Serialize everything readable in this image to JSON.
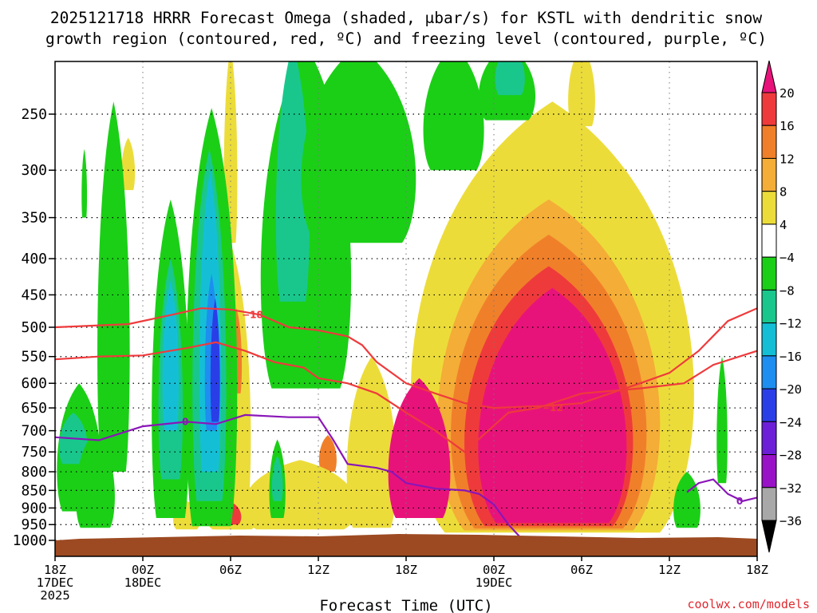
{
  "chart_data": {
    "type": "heatmap",
    "title_line1": "2025121718 HRRR Forecast Omega (shaded, μbar/s) for KSTL with dendritic snow",
    "title_line2": "growth region (contoured, red, ºC) and freezing level (contoured, purple, ºC)",
    "xlabel": "Forecast Time (UTC)",
    "credit": "coolwx.com/models",
    "y_axis": {
      "type": "pressure",
      "unit": "hPa",
      "reversed": true,
      "ticks": [
        250,
        300,
        350,
        400,
        450,
        500,
        550,
        600,
        650,
        700,
        750,
        800,
        850,
        900,
        950,
        1000
      ],
      "range": [
        1000,
        200
      ]
    },
    "x_axis": {
      "range_hours": [
        0,
        48
      ],
      "ticks": [
        {
          "hour": 0,
          "lines": [
            "18Z",
            "17DEC",
            "2025"
          ]
        },
        {
          "hour": 6,
          "lines": [
            "00Z",
            "18DEC"
          ]
        },
        {
          "hour": 12,
          "lines": [
            "06Z"
          ]
        },
        {
          "hour": 18,
          "lines": [
            "12Z"
          ]
        },
        {
          "hour": 24,
          "lines": [
            "18Z"
          ]
        },
        {
          "hour": 30,
          "lines": [
            "00Z",
            "19DEC"
          ]
        },
        {
          "hour": 36,
          "lines": [
            "06Z"
          ]
        },
        {
          "hour": 42,
          "lines": [
            "12Z"
          ]
        },
        {
          "hour": 48,
          "lines": [
            "18Z"
          ]
        }
      ]
    },
    "colorbar": {
      "labels": [
        "20",
        "16",
        "12",
        "8",
        "4",
        "−4",
        "−8",
        "−12",
        "−16",
        "−20",
        "−24",
        "−28",
        "−32",
        "−36"
      ],
      "colors": [
        "#e8137a",
        "#ef3a3c",
        "#f07f2a",
        "#f4ad37",
        "#ecdc3a",
        "#ffffff",
        "#1bcf17",
        "#19c78d",
        "#14bfd6",
        "#1e8ef0",
        "#2a3ee8",
        "#6d1fd8",
        "#9a12c8",
        "#a8a8a8",
        "#000000"
      ]
    },
    "shaded_areas": [
      {
        "level": "4",
        "t0": 23.5,
        "t1": 44.5,
        "p_top": 240,
        "p_bot": 975
      },
      {
        "level": "8",
        "t0": 25.5,
        "t1": 42.0,
        "p_top": 330,
        "p_bot": 968
      },
      {
        "level": "12",
        "t0": 26.5,
        "t1": 41.0,
        "p_top": 370,
        "p_bot": 962
      },
      {
        "level": "16",
        "t0": 27.5,
        "t1": 40.0,
        "p_top": 410,
        "p_bot": 955
      },
      {
        "level": "20",
        "t0": 28.5,
        "t1": 39.5,
        "p_top": 440,
        "p_bot": 945
      },
      {
        "level": "4",
        "t0": 19.8,
        "t1": 23.5,
        "p_top": 550,
        "p_bot": 960
      },
      {
        "level": "20",
        "t0": 22.6,
        "t1": 27.2,
        "p_top": 590,
        "p_bot": 930
      },
      {
        "level": "4",
        "t0": 10.5,
        "t1": 13.5,
        "p_top": 380,
        "p_bot": 965
      },
      {
        "level": "12",
        "t0": 18.0,
        "t1": 19.3,
        "p_top": 710,
        "p_bot": 800
      },
      {
        "level": "12",
        "t0": 12.0,
        "t1": 12.8,
        "p_top": 470,
        "p_bot": 620
      },
      {
        "level": "4",
        "t0": 12.5,
        "t1": 21.0,
        "p_top": 770,
        "p_bot": 965
      },
      {
        "level": "20",
        "t0": 14.8,
        "t1": 15.6,
        "p_top": 830,
        "p_bot": 930
      },
      {
        "level": "4",
        "t0": 8.0,
        "t1": 10.0,
        "p_top": 880,
        "p_bot": 965
      },
      {
        "level": "4",
        "t0": 10.2,
        "t1": 14.0,
        "p_top": 850,
        "p_bot": 965
      },
      {
        "level": "16",
        "t0": 11.0,
        "t1": 12.8,
        "p_top": 880,
        "p_bot": 950
      },
      {
        "level": "4",
        "t0": 7.5,
        "t1": 8.3,
        "p_top": 600,
        "p_bot": 870
      },
      {
        "level": "4",
        "t0": 9.5,
        "t1": 10.2,
        "p_top": 320,
        "p_bot": 400
      },
      {
        "level": "4",
        "t0": 11.5,
        "t1": 12.5,
        "p_top": 200,
        "p_bot": 380
      },
      {
        "level": "4",
        "t0": 18.2,
        "t1": 20.2,
        "p_top": 300,
        "p_bot": 450
      },
      {
        "level": "4",
        "t0": 35.0,
        "t1": 37.0,
        "p_top": 200,
        "p_bot": 260
      },
      {
        "level": "4",
        "t0": 4.5,
        "t1": 5.5,
        "p_top": 270,
        "p_bot": 320
      },
      {
        "level": "-8",
        "t0": 2.8,
        "t1": 5.2,
        "p_top": 240,
        "p_bot": 800
      },
      {
        "level": "-8",
        "t0": 8.8,
        "t1": 12.6,
        "p_top": 245,
        "p_bot": 955
      },
      {
        "level": "-12",
        "t0": 9.3,
        "t1": 11.8,
        "p_top": 280,
        "p_bot": 880
      },
      {
        "level": "-16",
        "t0": 9.8,
        "t1": 11.4,
        "p_top": 300,
        "p_bot": 800
      },
      {
        "level": "-20",
        "t0": 10.2,
        "t1": 11.2,
        "p_top": 420,
        "p_bot": 700
      },
      {
        "level": "-24",
        "t0": 10.6,
        "t1": 11.3,
        "p_top": 455,
        "p_bot": 680
      },
      {
        "level": "-8",
        "t0": 6.5,
        "t1": 9.3,
        "p_top": 330,
        "p_bot": 930
      },
      {
        "level": "-12",
        "t0": 7.0,
        "t1": 8.8,
        "p_top": 400,
        "p_bot": 820
      },
      {
        "level": "-16",
        "t0": 7.3,
        "t1": 8.5,
        "p_top": 430,
        "p_bot": 700
      },
      {
        "level": "-8",
        "t0": 0.0,
        "t1": 3.3,
        "p_top": 600,
        "p_bot": 910
      },
      {
        "level": "-12",
        "t0": 0.2,
        "t1": 2.3,
        "p_top": 660,
        "p_bot": 780
      },
      {
        "level": "-8",
        "t0": 1.3,
        "t1": 4.2,
        "p_top": 700,
        "p_bot": 960
      },
      {
        "level": "-8",
        "t0": 13.8,
        "t1": 20.5,
        "p_top": 200,
        "p_bot": 610
      },
      {
        "level": "-12",
        "t0": 15.0,
        "t1": 17.5,
        "p_top": 200,
        "p_bot": 460
      },
      {
        "level": "-8",
        "t0": 16.5,
        "t1": 25.0,
        "p_top": 200,
        "p_bot": 380
      },
      {
        "level": "-8",
        "t0": 25.0,
        "t1": 29.5,
        "p_top": 200,
        "p_bot": 300
      },
      {
        "level": "-8",
        "t0": 28.8,
        "t1": 33.0,
        "p_top": 200,
        "p_bot": 255
      },
      {
        "level": "-12",
        "t0": 30.0,
        "t1": 32.2,
        "p_top": 200,
        "p_bot": 235
      },
      {
        "level": "-8",
        "t0": 14.6,
        "t1": 15.8,
        "p_top": 720,
        "p_bot": 930
      },
      {
        "level": "-12",
        "t0": 14.8,
        "t1": 15.6,
        "p_top": 760,
        "p_bot": 880
      },
      {
        "level": "-8",
        "t0": 42.2,
        "t1": 44.2,
        "p_top": 800,
        "p_bot": 960
      },
      {
        "level": "-8",
        "t0": 45.2,
        "t1": 46.0,
        "p_top": 550,
        "p_bot": 830
      },
      {
        "level": "-8",
        "t0": 1.8,
        "t1": 2.2,
        "p_top": 280,
        "p_bot": 350
      }
    ],
    "contours": [
      {
        "name": "dgz-top",
        "label": "−18",
        "color": "#ef3a3c",
        "label_at_hour": 13.5,
        "points": [
          [
            0,
            500
          ],
          [
            5,
            495
          ],
          [
            8,
            480
          ],
          [
            10,
            470
          ],
          [
            12,
            472
          ],
          [
            14,
            480
          ],
          [
            16,
            500
          ],
          [
            18,
            505
          ],
          [
            20,
            515
          ],
          [
            21,
            530
          ],
          [
            22,
            560
          ],
          [
            24,
            600
          ],
          [
            26,
            620
          ],
          [
            28,
            640
          ],
          [
            30,
            650
          ],
          [
            34,
            645
          ],
          [
            36,
            640
          ],
          [
            40,
            600
          ],
          [
            42,
            580
          ],
          [
            44,
            540
          ],
          [
            46,
            490
          ],
          [
            48,
            470
          ]
        ]
      },
      {
        "name": "dgz-bottom",
        "label": "−12",
        "color": "#ef3a3c",
        "label_at_hour": 34.0,
        "points": [
          [
            0,
            555
          ],
          [
            3,
            550
          ],
          [
            6,
            548
          ],
          [
            9,
            535
          ],
          [
            11,
            525
          ],
          [
            13,
            540
          ],
          [
            15,
            560
          ],
          [
            17,
            570
          ],
          [
            18,
            590
          ],
          [
            20,
            600
          ],
          [
            22,
            620
          ],
          [
            24,
            660
          ],
          [
            26,
            700
          ],
          [
            28,
            750
          ],
          [
            31,
            660
          ],
          [
            33,
            650
          ],
          [
            36,
            620
          ],
          [
            40,
            610
          ],
          [
            43,
            600
          ],
          [
            45,
            565
          ],
          [
            48,
            540
          ]
        ]
      },
      {
        "name": "freezing-level",
        "label": "0",
        "color": "#8a16b8",
        "label_at_hour": 8.9,
        "points": [
          [
            0,
            715
          ],
          [
            3,
            722
          ],
          [
            6,
            690
          ],
          [
            9,
            680
          ],
          [
            11,
            685
          ],
          [
            13,
            665
          ],
          [
            16,
            670
          ],
          [
            18,
            670
          ],
          [
            19,
            720
          ],
          [
            20,
            780
          ],
          [
            22,
            790
          ],
          [
            23,
            800
          ],
          [
            24,
            830
          ],
          [
            26,
            845
          ],
          [
            28,
            850
          ],
          [
            29,
            860
          ],
          [
            30,
            890
          ],
          [
            31,
            950
          ],
          [
            32,
            1000
          ]
        ]
      },
      {
        "name": "freezing-level-east",
        "label": "0",
        "color": "#8a16b8",
        "label_at_hour": 46.8,
        "points": [
          [
            43.2,
            855
          ],
          [
            44,
            830
          ],
          [
            45,
            820
          ],
          [
            46,
            860
          ],
          [
            47,
            880
          ],
          [
            48,
            870
          ]
        ]
      }
    ]
  }
}
